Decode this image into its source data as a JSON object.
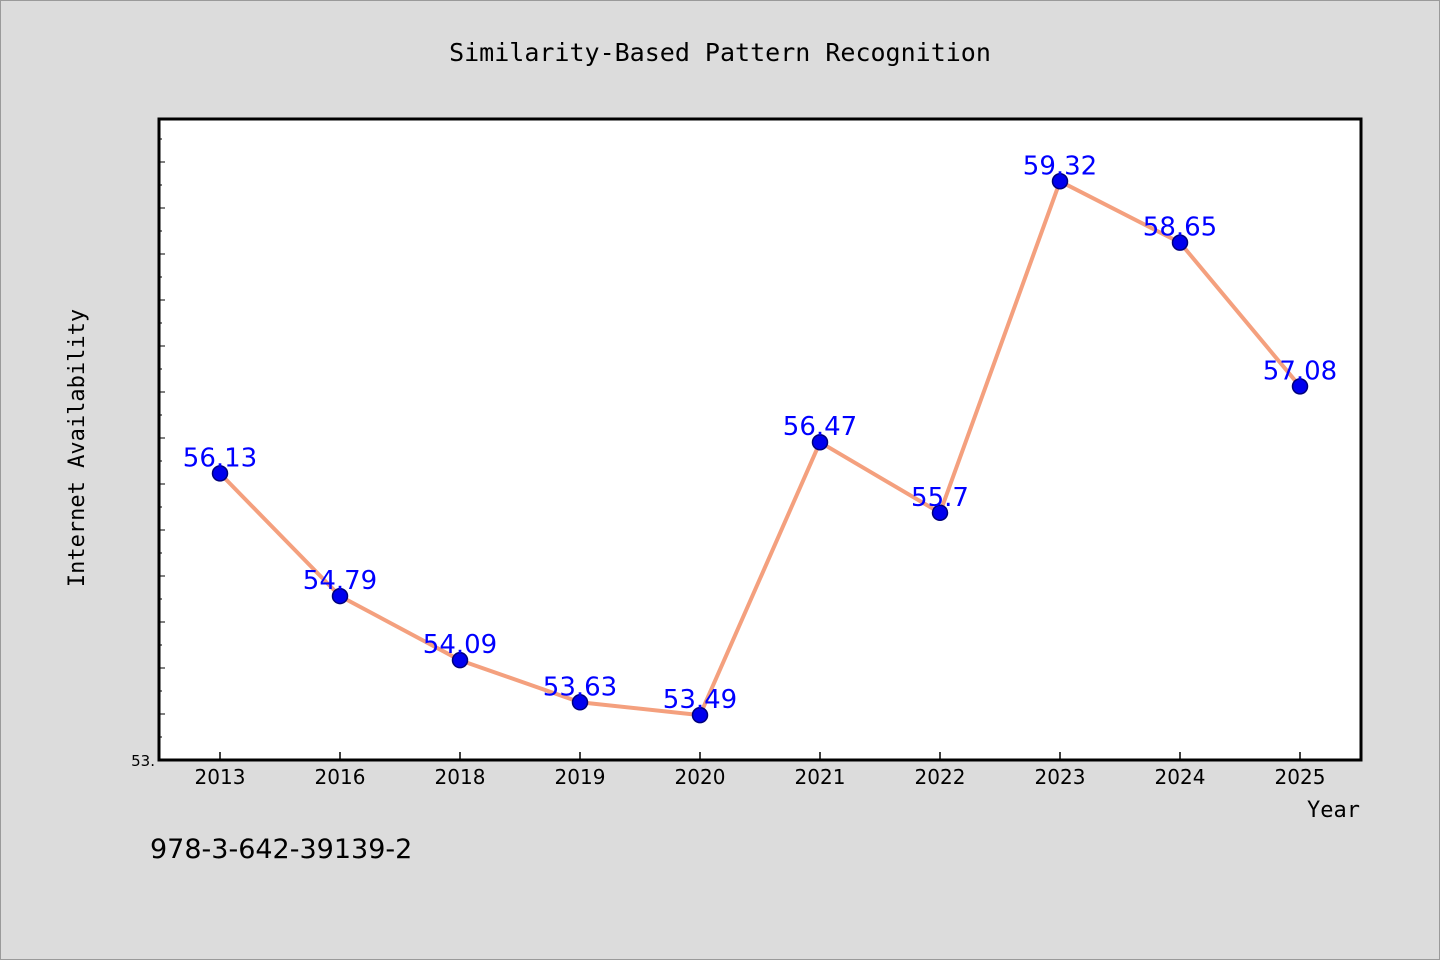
{
  "chart_data": {
    "type": "line",
    "title": "Similarity-Based Pattern Recognition",
    "xlabel": "Year",
    "ylabel": "Internet Availability",
    "categories": [
      "2013",
      "2016",
      "2018",
      "2019",
      "2020",
      "2021",
      "2022",
      "2023",
      "2024",
      "2025"
    ],
    "series": [
      {
        "values": [
          56.13,
          54.79,
          54.09,
          53.63,
          53.49,
          56.47,
          55.7,
          59.32,
          58.65,
          57.08
        ],
        "data_labels": [
          "56.13",
          "54.79",
          "54.09",
          "53.63",
          "53.49",
          "56.47",
          "55.7",
          "59.32",
          "58.65",
          "57.08"
        ]
      }
    ],
    "ylim": [
      53.0,
      60.0
    ],
    "y_tick_labels": [
      "53."
    ],
    "grid": false,
    "colors": {
      "line": "#f4a07e",
      "marker": "#0000ee",
      "marker_edge": "#00007a",
      "data_label": "#0000ff",
      "plot_background": "#ffffff",
      "page_background": "#dcdcdc"
    }
  },
  "footer": {
    "isbn": "978-3-642-39139-2"
  }
}
